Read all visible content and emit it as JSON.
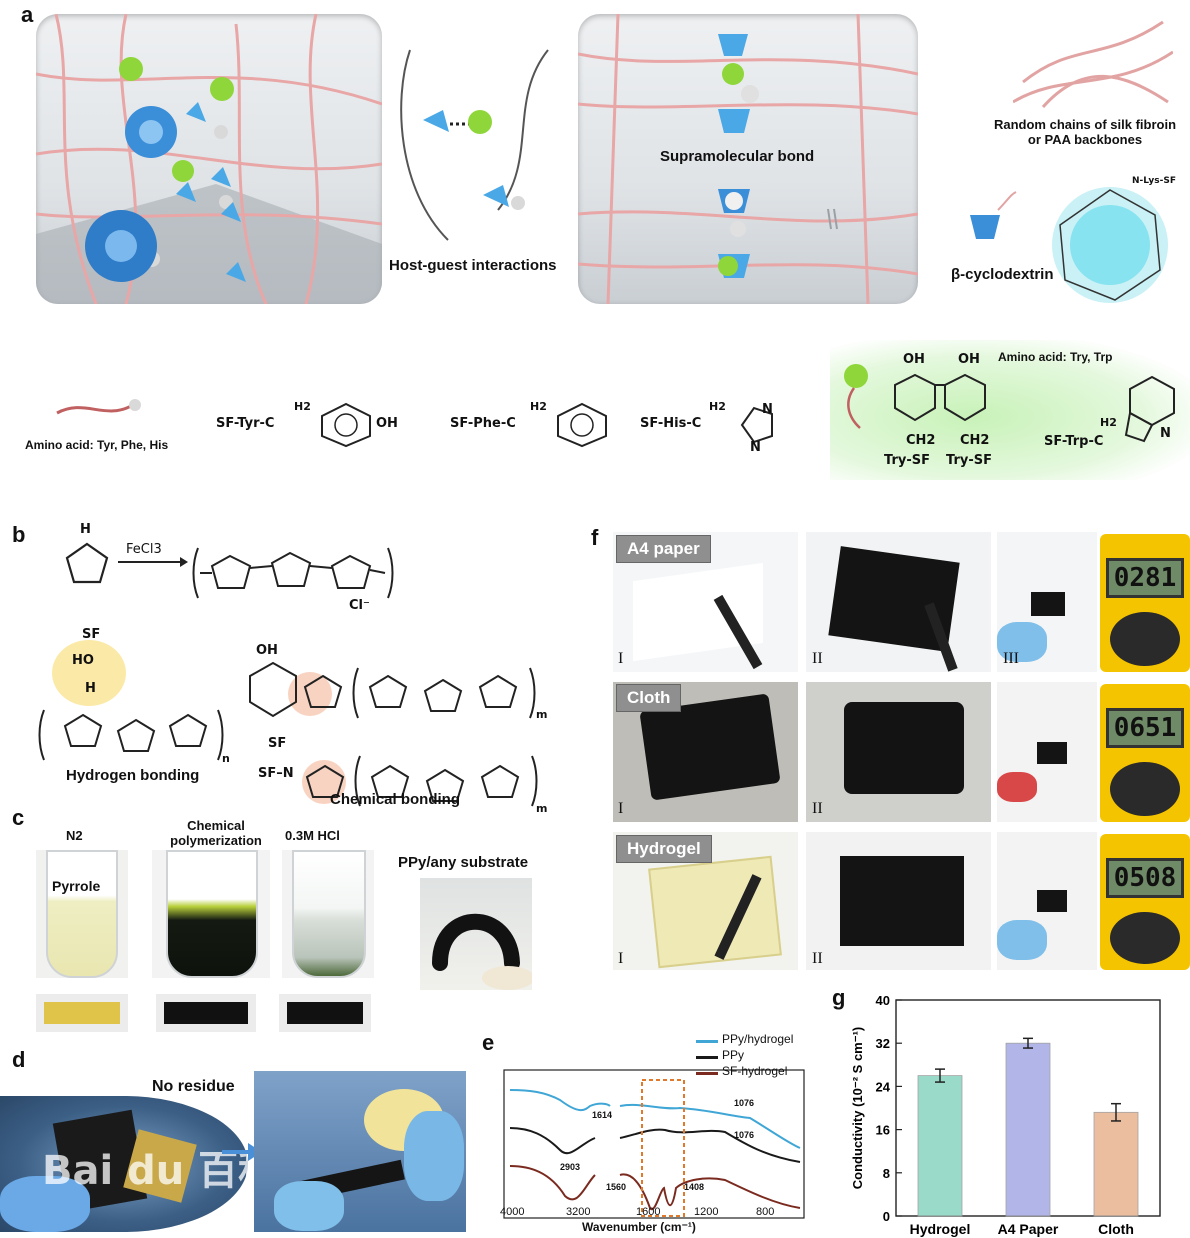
{
  "panels": {
    "a": "a",
    "b": "b",
    "c": "c",
    "d": "d",
    "e": "e",
    "f": "f",
    "g": "g"
  },
  "panel_a": {
    "host_guest": "Host-guest interactions",
    "supramolecular": "Supramolecular bond",
    "random_chains": "Random chains of silk fibroin\nor PAA backbones",
    "cyclodextrin": "β-cyclodextrin",
    "cd_linker": "N-Lys-SF",
    "amino_left": "Amino acid: Tyr, Phe, His",
    "amino_right": "Amino acid: Try, Trp",
    "sf_tyr": "SF-Tyr-C",
    "sf_phe": "SF-Phe-C",
    "sf_his": "SF-His-C",
    "sf_trp": "SF-Trp-C",
    "h2": "H2",
    "oh": "OH",
    "ch2": "CH2",
    "try_sf": "Try-SF",
    "n": "N",
    "nh": "N"
  },
  "panel_b": {
    "reagent": "FeCl3",
    "counter_ion": "Cl⁻",
    "h": "H",
    "sf": "SF",
    "ho": "HO",
    "n_sub": "n",
    "m_sub": "m",
    "hydrogen": "Hydrogen bonding",
    "chemical": "Chemical bonding",
    "sf_n": "SF–N"
  },
  "panel_c": {
    "n2": "N2",
    "chem_poly": "Chemical\npolymerization",
    "hcl": "0.3M HCl",
    "ppy_any": "PPy/any substrate",
    "pyrrole": "Pyrrole",
    "colors": {
      "pyrrole": "#e9e6b0",
      "dark": "#141a12",
      "swatch_yellow": "#e0c44a",
      "swatch_dark": "#111111"
    }
  },
  "panel_d": {
    "no_residue": "No residue",
    "watermark": "Bai du 百科"
  },
  "panel_e": {
    "legend": [
      "PPy/hydrogel",
      "PPy",
      "SF-hydrogel"
    ],
    "series_colors": [
      "#3fa6d6",
      "#1a1a1a",
      "#7a2a1e"
    ],
    "annotations": [
      "1614",
      "2903",
      "1560",
      "1408",
      "1076",
      "1076"
    ],
    "xlabel": "Wavenumber (cm⁻¹)",
    "xticks": [
      "4000",
      "3200",
      "1600",
      "1200",
      "800"
    ]
  },
  "panel_f": {
    "rows": [
      {
        "tag": "A4 paper",
        "reading": "0281"
      },
      {
        "tag": "Cloth",
        "reading": "0651"
      },
      {
        "tag": "Hydrogel",
        "reading": "0508"
      }
    ],
    "roman": [
      "I",
      "II",
      "III"
    ]
  },
  "chart_data": {
    "type": "bar",
    "categories": [
      "Hydrogel",
      "A4 Paper",
      "Cloth"
    ],
    "values": [
      26,
      32,
      19.2
    ],
    "errors": [
      1.2,
      0.9,
      1.6
    ],
    "colors": [
      "#8fd6c4",
      "#a9aee6",
      "#e9b896"
    ],
    "ylabel": "Conductivity (10⁻² S cm⁻¹)",
    "ylim": [
      0,
      40
    ],
    "yticks": [
      0,
      8,
      16,
      24,
      32,
      40
    ]
  }
}
